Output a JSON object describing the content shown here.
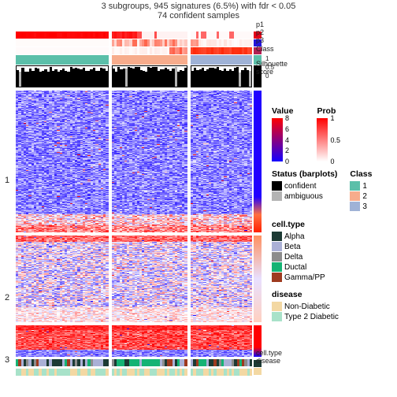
{
  "title1": "3 subgroups, 945 signatures (6.5%) with fdr < 0.05",
  "title2": "74 confident samples",
  "title_fontsize": 11,
  "columns_per_group": 3,
  "group_widths": [
    118,
    96,
    78
  ],
  "mini_width": 10,
  "anno_labels": {
    "p1": "p1",
    "p2": "p2",
    "p3": "p3",
    "class": "Class",
    "sil": "Silhouette\nscore",
    "celltype": "cell.type",
    "disease": "disease"
  },
  "sil_axis": [
    "1",
    "0.5",
    "0"
  ],
  "row_group_labels": [
    "1",
    "2",
    "3"
  ],
  "row_group_heights": [
    180,
    110,
    40
  ],
  "class_colors": [
    "#5bbfa9",
    "#f7ac8c",
    "#9fb2d6"
  ],
  "p_anno": {
    "p1": {
      "base": "#ffffff",
      "accent": "#ff0000"
    },
    "p2": {
      "base": "#ffffff",
      "accent": "#ff3a1a"
    },
    "p3": {
      "base": "#ffffff",
      "accent": "#ff2a0a"
    }
  },
  "heatmap_palette": {
    "low": "#1400ff",
    "mid": "#ffffff",
    "high": "#ff0000"
  },
  "value_scale": {
    "min": 0,
    "ticks": [
      0,
      2,
      4,
      6,
      8
    ]
  },
  "prob_scale": {
    "ticks": [
      0,
      0.5,
      1
    ]
  },
  "legends": {
    "value": "Value",
    "prob": "Prob",
    "status": {
      "title": "Status (barplots)",
      "items": [
        {
          "label": "confident",
          "color": "#000000"
        },
        {
          "label": "ambiguous",
          "color": "#b3b3b3"
        }
      ]
    },
    "class": {
      "title": "Class",
      "items": [
        {
          "label": "1",
          "color": "#5bbfa9"
        },
        {
          "label": "2",
          "color": "#f7ac8c"
        },
        {
          "label": "3",
          "color": "#9fb2d6"
        }
      ]
    },
    "celltype": {
      "title": "cell.type",
      "items": [
        {
          "label": "Alpha",
          "color": "#1c3a34"
        },
        {
          "label": "Beta",
          "color": "#aab0d6"
        },
        {
          "label": "Delta",
          "color": "#8c8c8c"
        },
        {
          "label": "Ductal",
          "color": "#15b374"
        },
        {
          "label": "Gamma/PP",
          "color": "#9e3a1f"
        }
      ]
    },
    "disease": {
      "title": "disease",
      "items": [
        {
          "label": "Non-Diabetic",
          "color": "#f3d8a3"
        },
        {
          "label": "Type 2 Diabetic",
          "color": "#a8e2c9"
        }
      ]
    }
  }
}
